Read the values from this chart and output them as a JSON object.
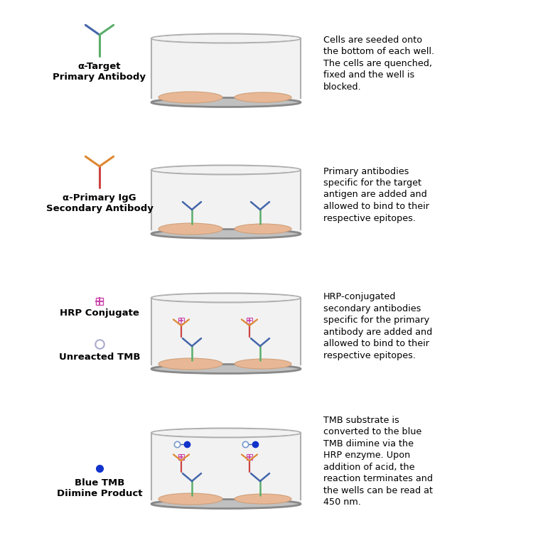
{
  "background_color": "#ffffff",
  "rows": [
    {
      "label": "α-Target\nPrimary Antibody",
      "description": "Cells are seeded onto\nthe bottom of each well.\nThe cells are quenched,\nfixed and the well is\nblocked.",
      "well_content": "cells_only",
      "icon_type": "primary_ab_icon"
    },
    {
      "label": "α-Primary IgG\nSecondary Antibody",
      "description": "Primary antibodies\nspecific for the target\nantigen are added and\nallowed to bind to their\nrespective epitopes.",
      "well_content": "primary_ab",
      "icon_type": "secondary_ab_icon"
    },
    {
      "label": "HRP Conjugate",
      "label2": "Unreacted TMB",
      "description": "HRP-conjugated\nsecondary antibodies\nspecific for the primary\nantibody are added and\nallowed to bind to their\nrespective epitopes.",
      "well_content": "hrp_conjugate",
      "icon_type": "hrp_icon"
    },
    {
      "label": "Blue TMB\nDiimine Product",
      "description": "TMB substrate is\nconverted to the blue\nTMB diimine via the\nHRP enzyme. Upon\naddition of acid, the\nreaction terminates and\nthe wells can be read at\n450 nm.",
      "well_content": "tmb_product",
      "icon_type": "tmb_icon"
    }
  ],
  "cell_color": "#e8b896",
  "cell_edge_color": "#d0a07a",
  "well_border_color": "#b0b0b0",
  "well_bottom_color": "#888888",
  "well_bg_color": "#f2f2f2",
  "primary_green": "#5aae6a",
  "primary_blue": "#4466aa",
  "secondary_red": "#cc4444",
  "secondary_orange": "#dd8833",
  "hrp_pink": "#cc44aa",
  "tmb_blue": "#1133cc",
  "tmb_empty_color": "#e0e0e0"
}
